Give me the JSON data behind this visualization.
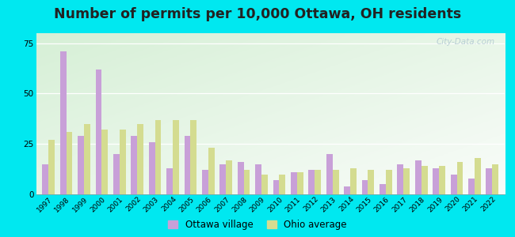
{
  "title": "Number of permits per 10,000 Ottawa, OH residents",
  "years": [
    1997,
    1998,
    1999,
    2000,
    2001,
    2002,
    2003,
    2004,
    2005,
    2006,
    2007,
    2008,
    2009,
    2010,
    2011,
    2012,
    2013,
    2014,
    2015,
    2016,
    2017,
    2018,
    2019,
    2020,
    2021,
    2022
  ],
  "ottawa": [
    15,
    71,
    29,
    62,
    20,
    29,
    26,
    13,
    29,
    12,
    15,
    16,
    15,
    7,
    11,
    12,
    20,
    4,
    7,
    5,
    15,
    17,
    13,
    10,
    8,
    13
  ],
  "ohio": [
    27,
    31,
    35,
    32,
    32,
    35,
    37,
    37,
    37,
    23,
    17,
    12,
    10,
    10,
    11,
    12,
    12,
    13,
    12,
    12,
    13,
    14,
    14,
    16,
    18,
    15
  ],
  "ottawa_color": "#c8a0d8",
  "ohio_color": "#d4dc90",
  "bg_top_left": "#d8f0d0",
  "bg_bottom_right": "#f0faf0",
  "outer_background": "#00e8f0",
  "ylim": [
    0,
    80
  ],
  "yticks": [
    0,
    25,
    50,
    75
  ],
  "bar_width": 0.35,
  "legend_ottawa": "Ottawa village",
  "legend_ohio": "Ohio average",
  "title_fontsize": 12.5,
  "watermark": "City-Data.com"
}
